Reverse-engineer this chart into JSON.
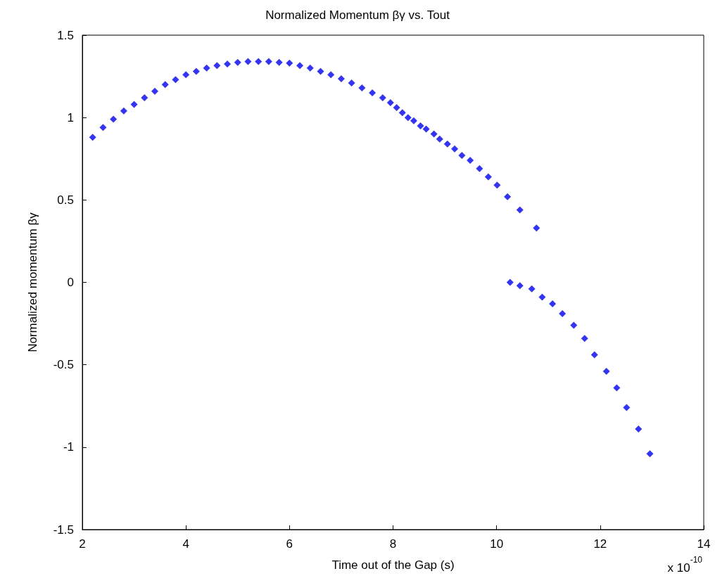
{
  "chart_data": {
    "type": "scatter",
    "title": "Normalized Momentum βγ vs. Tout",
    "xlabel": "Time out of the Gap (s)",
    "ylabel": "Normalized momentum βγ",
    "annotations": [
      "x 10$^{-10}$"
    ],
    "marker": "diamond",
    "grid": false,
    "xlim": [
      2,
      14
    ],
    "xticks": [
      2,
      4,
      6,
      8,
      10,
      12,
      14
    ],
    "ylim": [
      -1.5,
      1.5
    ],
    "yticks": [
      -1.5,
      -1,
      -0.5,
      0,
      0.5,
      1,
      1.5
    ],
    "series": [
      {
        "color": "#0000ff",
        "x": [
          2.2,
          2.4,
          2.6,
          2.8,
          3.0,
          3.2,
          3.4,
          3.6,
          3.8,
          4.0,
          4.2,
          4.4,
          4.6,
          4.8,
          5.0,
          5.2,
          5.4,
          5.6,
          5.8,
          6.0,
          6.2,
          6.4,
          6.6,
          6.8,
          7.0,
          7.2,
          7.4,
          7.6,
          7.8,
          7.95,
          8.07,
          8.18,
          8.29,
          8.4,
          8.53,
          8.64,
          8.79,
          8.9,
          9.05,
          9.19,
          9.33,
          9.49,
          9.67,
          9.84,
          10.01,
          10.21,
          10.45,
          10.77,
          10.26,
          10.45,
          10.68,
          10.88,
          11.08,
          11.27,
          11.49,
          11.7,
          11.89,
          12.12,
          12.32,
          12.51,
          12.74,
          12.96
        ],
        "values": [
          0.88,
          0.94,
          0.99,
          1.04,
          1.08,
          1.12,
          1.16,
          1.2,
          1.23,
          1.26,
          1.28,
          1.3,
          1.315,
          1.325,
          1.335,
          1.34,
          1.34,
          1.34,
          1.335,
          1.33,
          1.315,
          1.3,
          1.28,
          1.26,
          1.235,
          1.21,
          1.18,
          1.15,
          1.12,
          1.09,
          1.06,
          1.03,
          1.0,
          0.98,
          0.95,
          0.93,
          0.9,
          0.87,
          0.84,
          0.81,
          0.77,
          0.74,
          0.69,
          0.64,
          0.59,
          0.52,
          0.44,
          0.33,
          0.0,
          -0.02,
          -0.04,
          -0.09,
          -0.13,
          -0.19,
          -0.26,
          -0.34,
          -0.44,
          -0.54,
          -0.64,
          -0.76,
          -0.89,
          -1.04
        ]
      }
    ]
  }
}
